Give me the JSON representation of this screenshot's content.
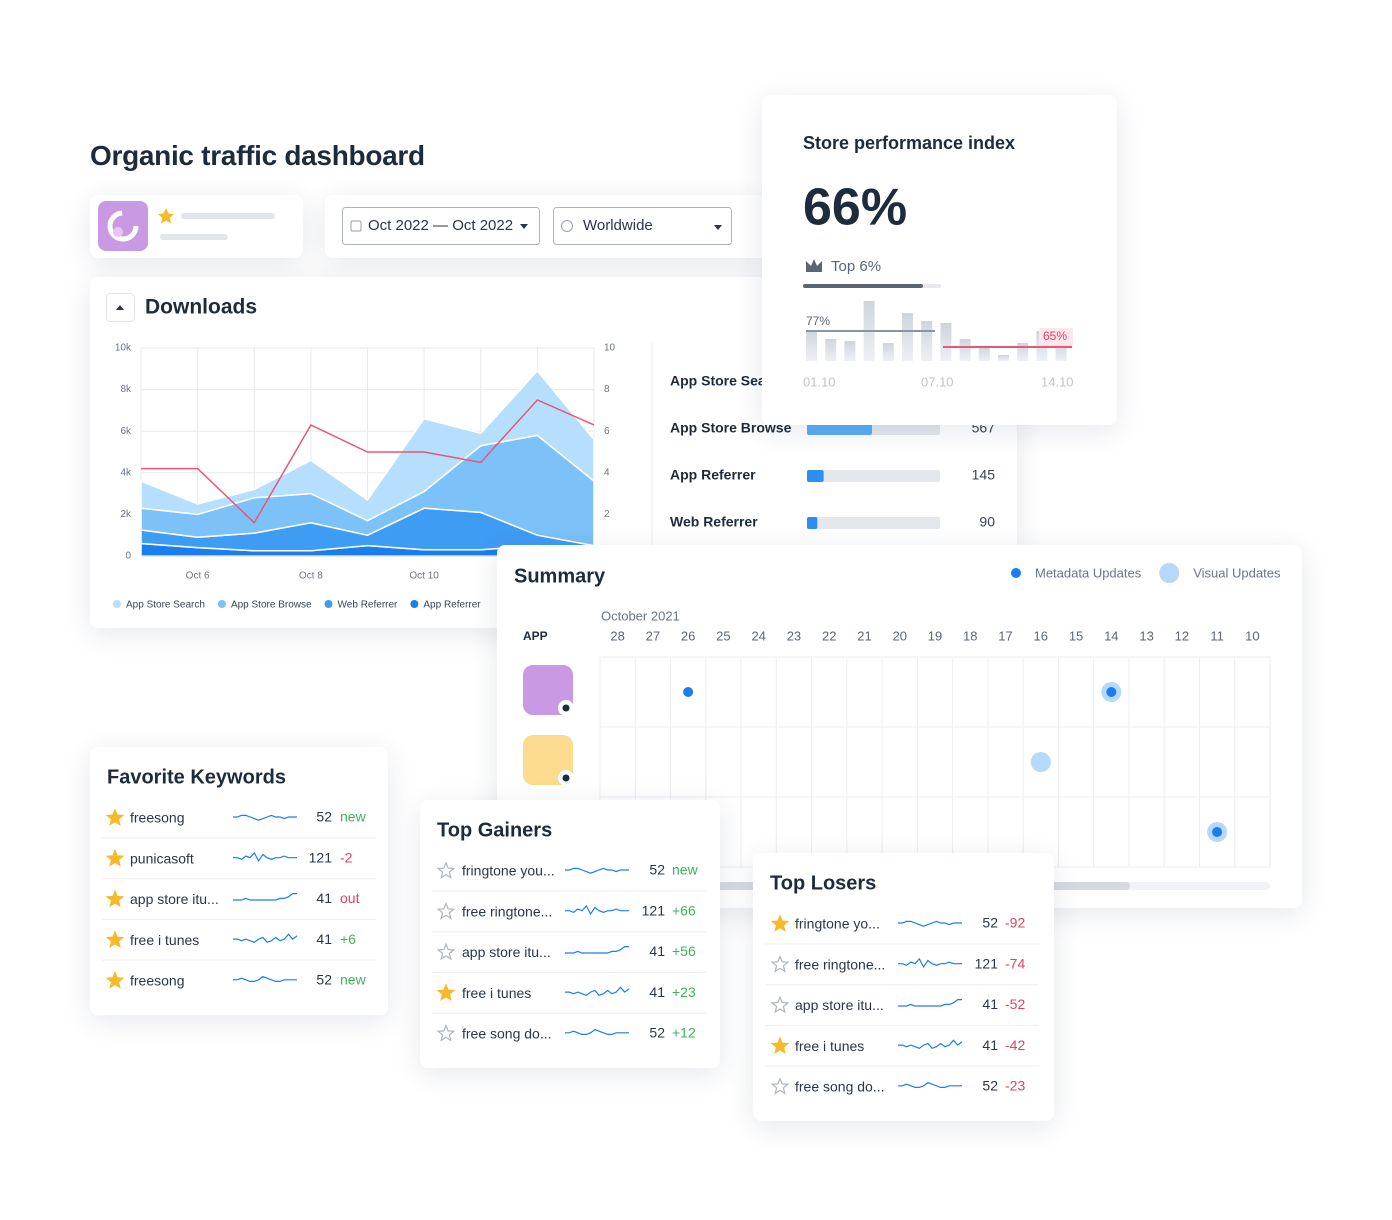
{
  "title": "Organic traffic dashboard",
  "filters": {
    "date": "Oct 2022 — Oct 2022",
    "region": "Worldwide"
  },
  "downloads": {
    "title": "Downloads",
    "type": "area",
    "categories": [
      null,
      "Oct 6",
      null,
      "Oct 8",
      null,
      "Oct 10",
      null,
      null,
      null
    ],
    "ylim": [
      0,
      10000
    ],
    "yticks": [
      0,
      {
        "value": 2000,
        "label": "2k"
      },
      {
        "value": 4000,
        "label": "4k"
      },
      {
        "value": 6000,
        "label": "6k"
      },
      {
        "value": 8000,
        "label": "8k"
      },
      {
        "value": 10000,
        "label": "10k"
      }
    ],
    "y2lim": [
      0,
      10
    ],
    "y2ticks": [
      0,
      2,
      4,
      6,
      8,
      10
    ],
    "grid": true,
    "series": [
      {
        "name": "App Store Search",
        "color": "#b5dffc",
        "values": [
          1300,
          500,
          400,
          1600,
          1000,
          3500,
          600,
          3100,
          2000
        ]
      },
      {
        "name": "App Store Browse",
        "color": "#7cc1f7",
        "values": [
          1050,
          1100,
          1700,
          1400,
          700,
          800,
          3200,
          4800,
          3100
        ]
      },
      {
        "name": "Web Referrer",
        "color": "#3f9cf3",
        "values": [
          650,
          500,
          850,
          1350,
          500,
          2000,
          1800,
          500,
          200
        ]
      },
      {
        "name": "App Referrer",
        "color": "#1a7ef0",
        "values": [
          600,
          400,
          250,
          250,
          500,
          300,
          300,
          500,
          300
        ]
      },
      {
        "type": "line",
        "axis": "y2",
        "color": "#e8577a",
        "values": [
          4.2,
          4.2,
          1.6,
          6.3,
          5,
          5,
          4.5,
          7.5,
          6.3
        ]
      }
    ]
  },
  "sources": {
    "xlim": [
      0,
      1160
    ],
    "rows": [
      {
        "label": "App Store Search",
        "color": "#2e8ef0"
      },
      {
        "label": "App Store Browse",
        "value": 567,
        "color": "#5aaef5"
      },
      {
        "label": "App Referrer",
        "value": 145,
        "color": "#2e8ef0"
      },
      {
        "label": "Web Referrer",
        "value": 90,
        "color": "#2e8ef0"
      }
    ]
  },
  "performance": {
    "title": "Store performance index",
    "value": "66%",
    "rank": "Top 6%",
    "start_label": "77%",
    "end_label": "65%",
    "x_labels": [
      "01.10",
      "07.10",
      "14.10"
    ],
    "ylim": [
      0,
      70
    ],
    "bars": [
      31,
      22,
      20,
      60,
      18,
      48,
      40,
      38,
      22,
      14,
      6,
      18,
      30,
      18
    ]
  },
  "summary": {
    "title": "Summary",
    "legend": [
      {
        "name": "Metadata Updates",
        "color": "#1a7ef0"
      },
      {
        "name": "Visual Updates",
        "color": "#b5d8fb"
      }
    ],
    "month": "October 2021",
    "column_header": "APP",
    "days": [
      28,
      27,
      26,
      25,
      24,
      23,
      22,
      21,
      20,
      19,
      18,
      17,
      16,
      15,
      14,
      13,
      12,
      11,
      10
    ],
    "apps": [
      {
        "color": "#c99ae3"
      },
      {
        "color": "#fcdb8e"
      },
      {
        "color": "#8fd0c0"
      }
    ],
    "events": [
      {
        "row": 0,
        "day": 26,
        "legend_index": 0
      },
      {
        "row": 0,
        "day": 14,
        "legend_index": 1
      },
      {
        "row": 0,
        "day": 14,
        "legend_index": 0
      },
      {
        "row": 1,
        "day": 16,
        "legend_index": 1
      },
      {
        "row": 2,
        "day": 11,
        "legend_index": 1
      },
      {
        "row": 2,
        "day": 11,
        "legend_index": 0
      }
    ]
  },
  "keywords": [
    {
      "title": "Favorite Keywords",
      "rows": [
        {
          "starred": true,
          "keyword": "freesong",
          "value": 52,
          "change": "new",
          "change_color": "#3db35a"
        },
        {
          "starred": true,
          "keyword": "punicasoft",
          "value": 121,
          "change": "-2",
          "change_color": "#e0435f"
        },
        {
          "starred": true,
          "keyword": "app store itu...",
          "value": 41,
          "change": "out",
          "change_color": "#e0435f"
        },
        {
          "starred": true,
          "keyword": "free i tunes",
          "value": 41,
          "change": "+6",
          "change_color": "#3db35a"
        },
        {
          "starred": true,
          "keyword": "freesong",
          "value": 52,
          "change": "new",
          "change_color": "#3db35a"
        }
      ]
    },
    {
      "title": "Top Gainers",
      "rows": [
        {
          "starred": false,
          "keyword": "fringtone you...",
          "value": 52,
          "change": "new",
          "change_color": "#3db35a"
        },
        {
          "starred": false,
          "keyword": "free ringtone...",
          "value": 121,
          "change": "+66",
          "change_color": "#3db35a"
        },
        {
          "starred": false,
          "keyword": "app store itu...",
          "value": 41,
          "change": "+56",
          "change_color": "#3db35a"
        },
        {
          "starred": true,
          "keyword": "free i tunes",
          "value": 41,
          "change": "+23",
          "change_color": "#3db35a"
        },
        {
          "starred": false,
          "keyword": "free song do...",
          "value": 52,
          "change": "+12",
          "change_color": "#3db35a"
        }
      ]
    },
    {
      "title": "Top Losers",
      "rows": [
        {
          "starred": true,
          "keyword": "fringtone yo...",
          "value": 52,
          "change": "-92",
          "change_color": "#e0435f"
        },
        {
          "starred": false,
          "keyword": "free ringtone...",
          "value": 121,
          "change": "-74",
          "change_color": "#e0435f"
        },
        {
          "starred": false,
          "keyword": "app store itu...",
          "value": 41,
          "change": "-52",
          "change_color": "#e0435f"
        },
        {
          "starred": true,
          "keyword": "free i tunes",
          "value": 41,
          "change": "-42",
          "change_color": "#e0435f"
        },
        {
          "starred": false,
          "keyword": "free song do...",
          "value": 52,
          "change": "-23",
          "change_color": "#e0435f"
        }
      ]
    }
  ]
}
